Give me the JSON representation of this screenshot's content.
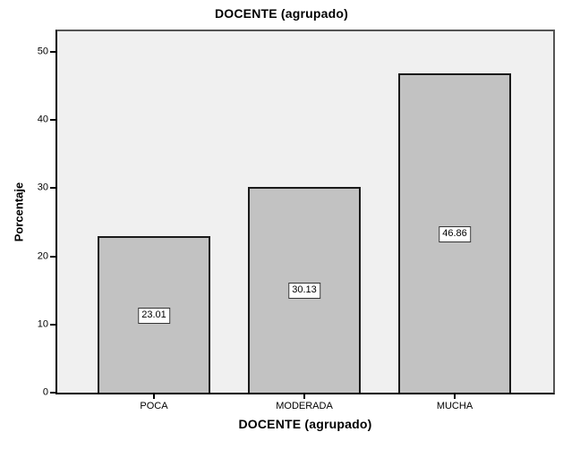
{
  "chart_data": {
    "type": "bar",
    "title": "DOCENTE (agrupado)",
    "xlabel": "DOCENTE (agrupado)",
    "ylabel": "Porcentaje",
    "categories": [
      "POCA",
      "MODERADA",
      "MUCHA"
    ],
    "values": [
      23.01,
      30.13,
      46.86
    ],
    "data_labels": [
      "23.01",
      "30.13",
      "46.86"
    ],
    "ylim": [
      0,
      50
    ],
    "yticks": [
      0,
      10,
      20,
      30,
      40,
      50
    ],
    "grid": false,
    "legend_position": "none",
    "colors": {
      "bar_fill": "#c2c2c2",
      "bar_border": "#1a1a1a",
      "plot_background": "#f0f0f0",
      "frame_border": "#545454",
      "axis_line": "#000000",
      "page_background": "#ffffff",
      "data_label_box_background": "#ffffff",
      "text": "#000000"
    }
  }
}
